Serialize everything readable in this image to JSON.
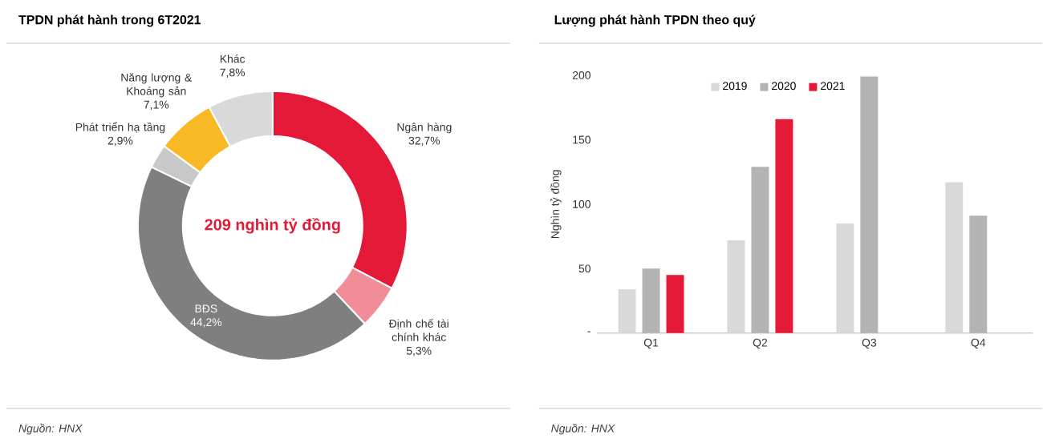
{
  "chart_data": [
    {
      "type": "donut",
      "title": "TPDN phát hành trong 6T2021",
      "categories": [
        "Ngân hàng",
        "Định chế tài chính khác",
        "BĐS",
        "Phát triển hạ tầng",
        "Năng lượng & Khoáng sản",
        "Khác"
      ],
      "values": [
        32.7,
        5.3,
        44.2,
        2.9,
        7.1,
        7.8
      ],
      "value_labels": [
        "32,7%",
        "5,3%",
        "44,2%",
        "2,9%",
        "7,1%",
        "7,8%"
      ],
      "colors": [
        "#e31937",
        "#f08d99",
        "#7f7f7f",
        "#c8c8c8",
        "#f9b826",
        "#d9d9d9"
      ],
      "annotations": [
        "209 nghìn tỷ đồng",
        "Nguồn: HNX"
      ]
    },
    {
      "type": "bar",
      "title": "Lượng phát hành TPDN theo quý",
      "ylabel": "Nghìn tỷ đồng",
      "categories": [
        "Q1",
        "Q2",
        "Q3",
        "Q4"
      ],
      "series": [
        {
          "name": "2019",
          "color": "#d9d9d9",
          "values": [
            34,
            72,
            85,
            117
          ]
        },
        {
          "name": "2020",
          "color": "#b3b3b3",
          "values": [
            50,
            129,
            199,
            91
          ]
        },
        {
          "name": "2021",
          "color": "#e31937",
          "values": [
            45,
            166,
            null,
            null
          ]
        }
      ],
      "ylim": [
        0,
        200
      ],
      "yticks": [
        {
          "value": 0,
          "label": "-"
        },
        50,
        100,
        150,
        200
      ],
      "legend": "top",
      "annotations": [
        "Nguồn: HNX"
      ]
    }
  ]
}
